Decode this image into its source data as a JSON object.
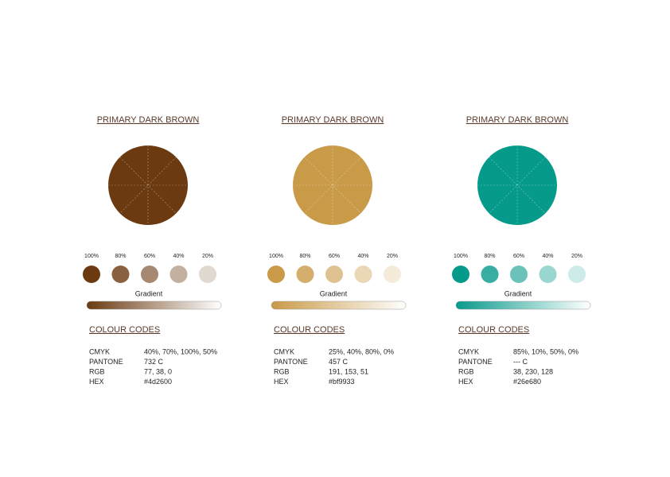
{
  "columns": [
    {
      "title": "PRIMARY DARK BROWN",
      "color": "#6b3a10",
      "tints": [
        "100%",
        "80%",
        "60%",
        "40%",
        "20%"
      ],
      "gradient_label": "Gradient",
      "codes_heading": "COLOUR CODES",
      "codes": [
        [
          "CMYK",
          "40%, 70%, 100%, 50%"
        ],
        [
          "PANTONE",
          "732 C"
        ],
        [
          "RGB",
          "77, 38, 0"
        ],
        [
          "HEX",
          "#4d2600"
        ]
      ]
    },
    {
      "title": "PRIMARY DARK BROWN",
      "color": "#c99a48",
      "tints": [
        "100%",
        "80%",
        "60%",
        "40%",
        "20%"
      ],
      "gradient_label": "Gradient",
      "codes_heading": "COLOUR CODES",
      "codes": [
        [
          "CMYK",
          "25%, 40%, 80%, 0%"
        ],
        [
          "PANTONE",
          "457 C"
        ],
        [
          "RGB",
          "191, 153, 51"
        ],
        [
          "HEX",
          "#bf9933"
        ]
      ]
    },
    {
      "title": "PRIMARY DARK BROWN",
      "color": "#069a8b",
      "tints": [
        "100%",
        "80%",
        "60%",
        "40%",
        "20%"
      ],
      "gradient_label": "Gradient",
      "codes_heading": "COLOUR CODES",
      "codes": [
        [
          "CMYK",
          "85%, 10%, 50%, 0%"
        ],
        [
          "PANTONE",
          "--- C"
        ],
        [
          "RGB",
          "38, 230, 128"
        ],
        [
          "HEX",
          "#26e680"
        ]
      ]
    }
  ]
}
